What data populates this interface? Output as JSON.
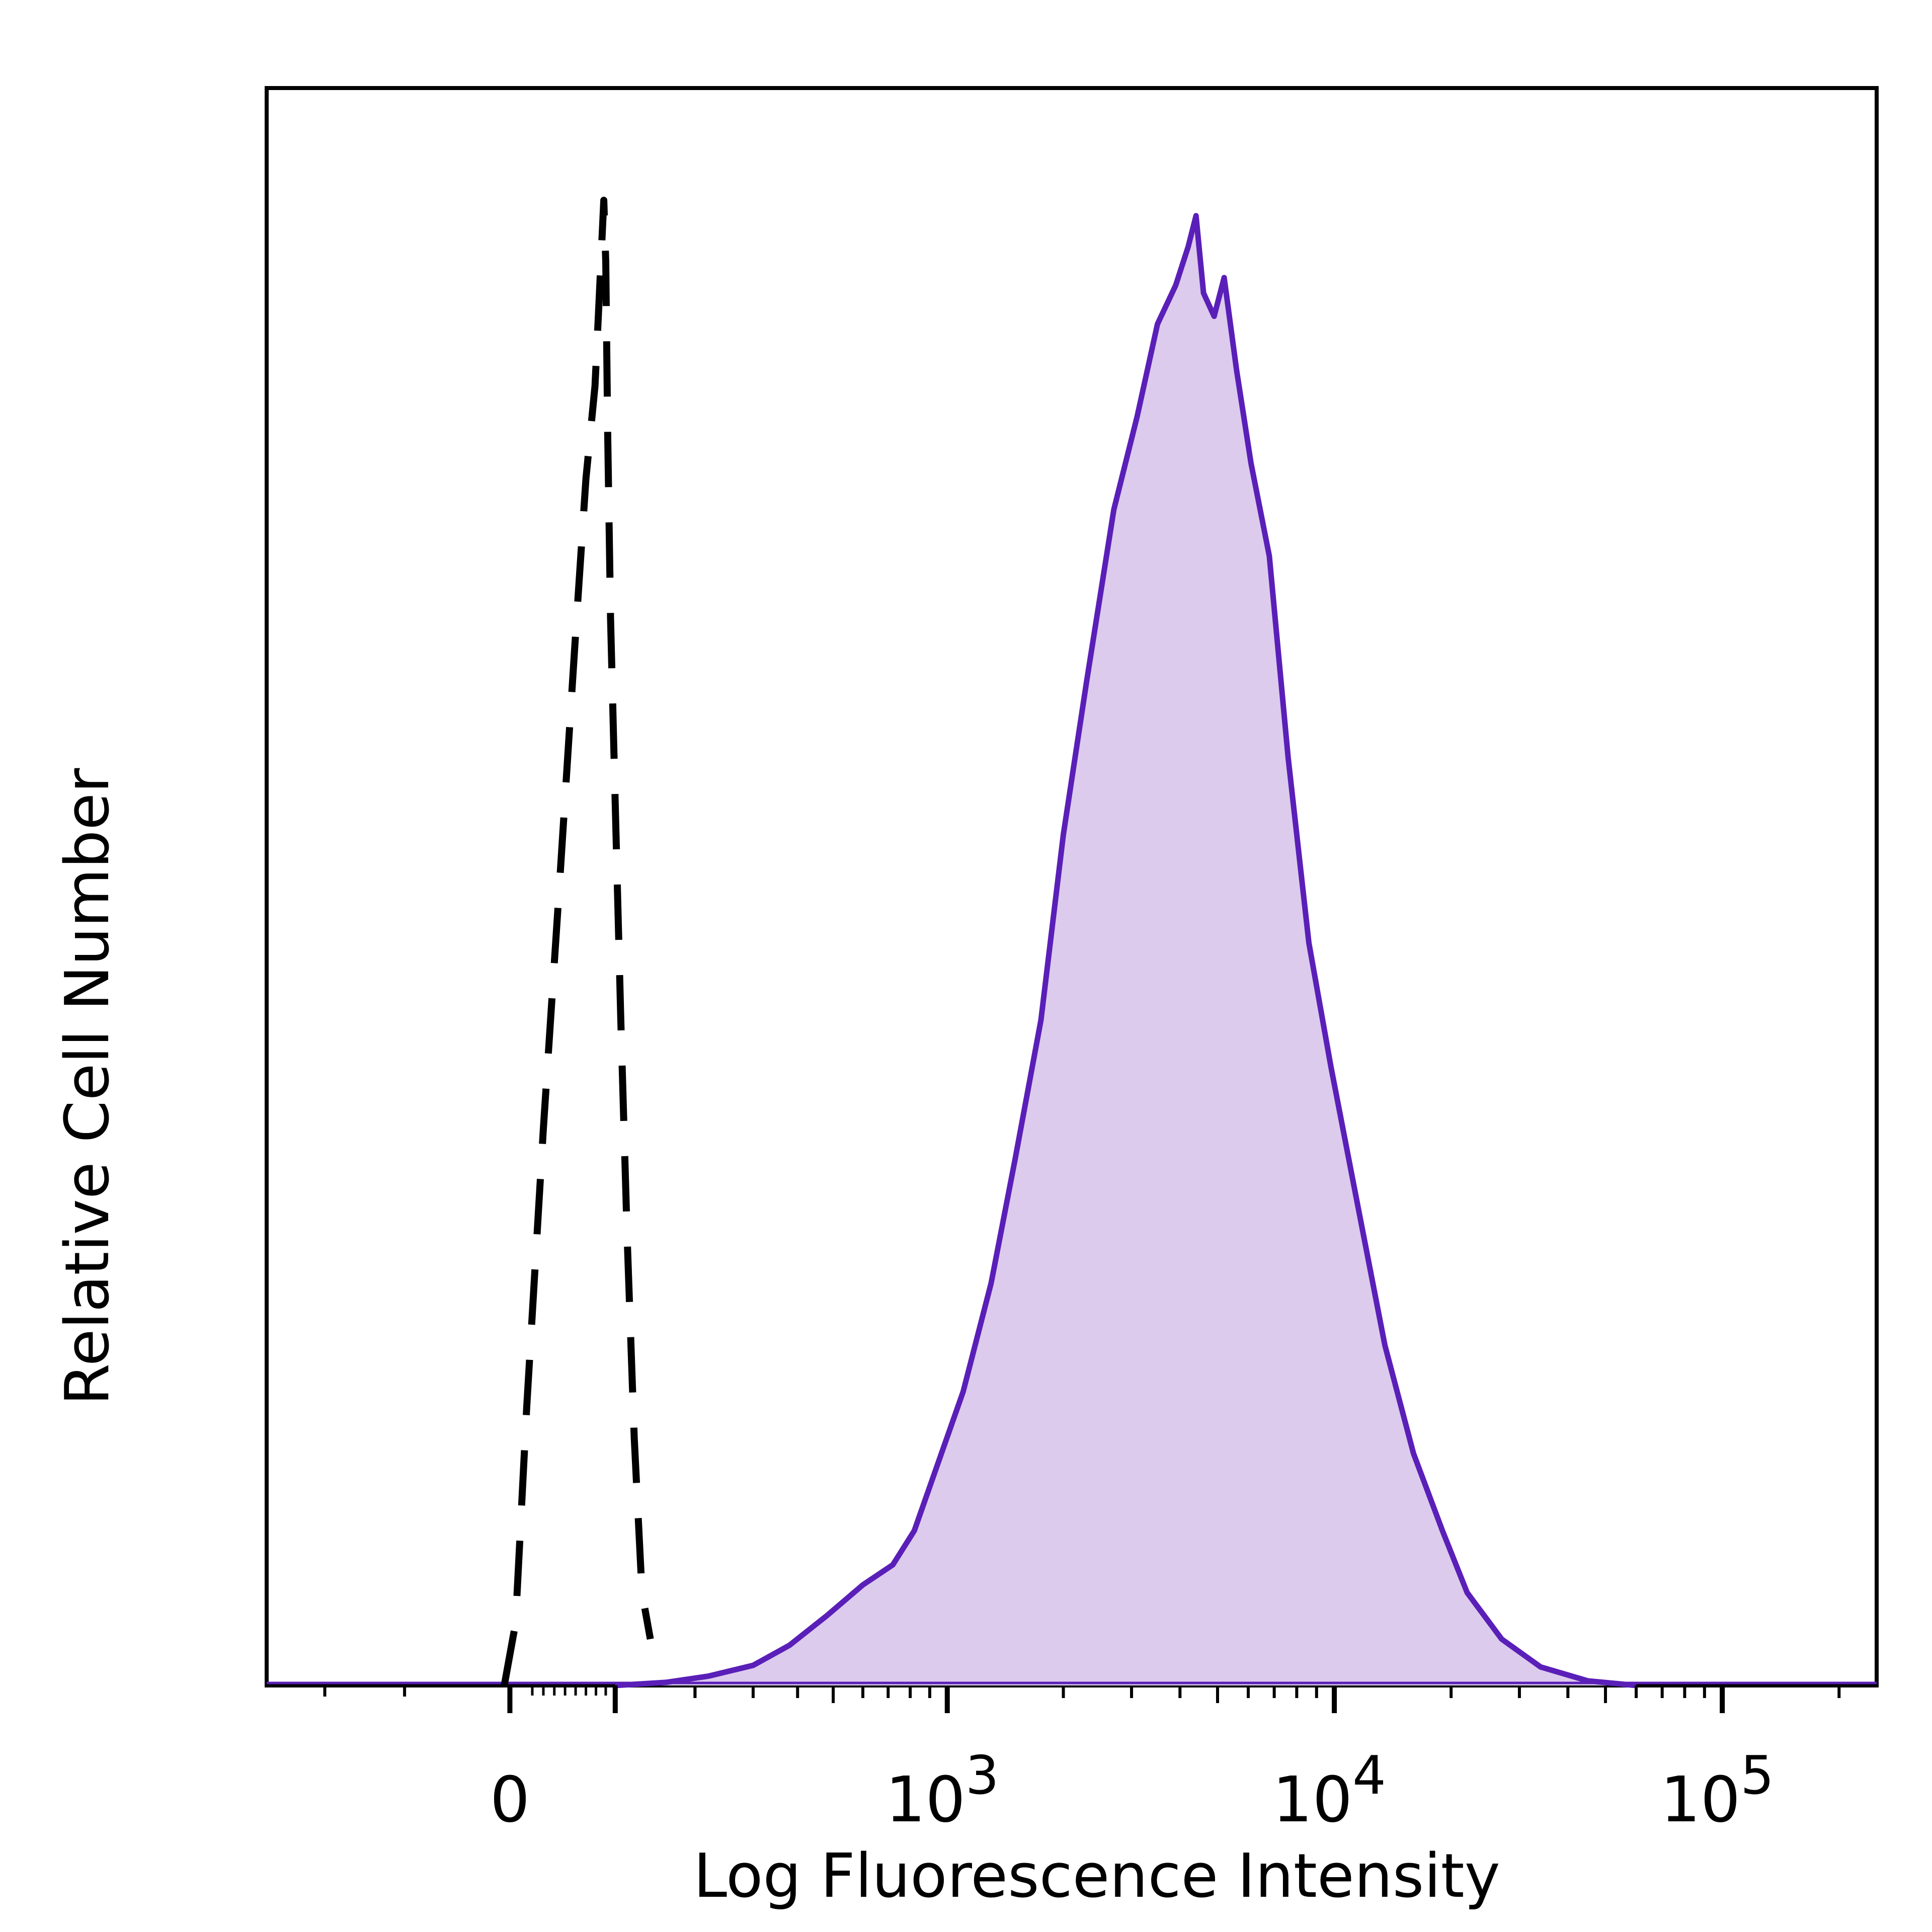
{
  "chart_data": {
    "type": "area",
    "xlabel": "Log Fluorescence Intensity",
    "ylabel": "Relative Cell Number",
    "x_scale": "biexponential",
    "xlim": [
      -300,
      250000
    ],
    "ylim": [
      0,
      100
    ],
    "tick_labels": [
      {
        "value": 0,
        "base": "0",
        "exp": ""
      },
      {
        "value": 1000,
        "base": "10",
        "exp": "3"
      },
      {
        "value": 10000,
        "base": "10",
        "exp": "4"
      },
      {
        "value": 100000,
        "base": "10",
        "exp": "5"
      }
    ],
    "grid": false,
    "legend": "none",
    "series": [
      {
        "style": "dashed",
        "color": "#000000",
        "fill": null,
        "points": [
          [
            -5,
            0
          ],
          [
            5,
            4
          ],
          [
            15,
            18
          ],
          [
            30,
            36
          ],
          [
            45,
            52
          ],
          [
            60,
            68
          ],
          [
            70,
            78
          ],
          [
            76,
            82
          ],
          [
            79,
            84
          ],
          [
            82,
            88
          ],
          [
            85,
            92
          ],
          [
            88,
            96
          ],
          [
            90,
            92
          ],
          [
            92,
            81
          ],
          [
            95,
            69
          ],
          [
            100,
            57
          ],
          [
            106,
            43
          ],
          [
            113,
            29
          ],
          [
            121,
            16
          ],
          [
            130,
            6
          ],
          [
            140,
            3
          ]
        ]
      },
      {
        "style": "solid",
        "color": "#5a1fb8",
        "fill": "#dccbec",
        "points": [
          [
            100,
            0
          ],
          [
            160,
            0.2
          ],
          [
            220,
            0.6
          ],
          [
            300,
            1.3
          ],
          [
            380,
            2.6
          ],
          [
            480,
            4.5
          ],
          [
            600,
            6.5
          ],
          [
            720,
            7.8
          ],
          [
            820,
            10
          ],
          [
            950,
            14.5
          ],
          [
            1100,
            19
          ],
          [
            1300,
            26
          ],
          [
            1500,
            34
          ],
          [
            1750,
            43
          ],
          [
            2000,
            55
          ],
          [
            2300,
            65
          ],
          [
            2700,
            76
          ],
          [
            3100,
            82
          ],
          [
            3500,
            88
          ],
          [
            3900,
            90.5
          ],
          [
            4200,
            93
          ],
          [
            4400,
            95
          ],
          [
            4600,
            90
          ],
          [
            4900,
            88.5
          ],
          [
            5200,
            91
          ],
          [
            5600,
            85
          ],
          [
            6100,
            79
          ],
          [
            6800,
            73
          ],
          [
            7600,
            60
          ],
          [
            8600,
            48
          ],
          [
            9800,
            40
          ],
          [
            11500,
            31
          ],
          [
            13500,
            22
          ],
          [
            16000,
            15
          ],
          [
            19000,
            10
          ],
          [
            22000,
            6
          ],
          [
            27000,
            3
          ],
          [
            34000,
            1.2
          ],
          [
            45000,
            0.3
          ],
          [
            60000,
            0
          ]
        ]
      }
    ]
  }
}
